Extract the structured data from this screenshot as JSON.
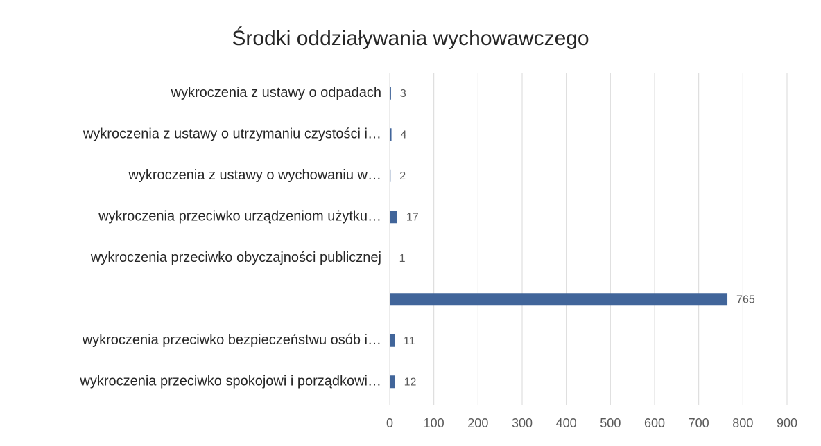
{
  "chart_data": {
    "type": "barh",
    "title": "Środki oddziaływania wychowawczego",
    "categories": [
      "wykroczenia z ustawy o odpadach",
      "wykroczenia z ustawy o utrzymaniu czystości i…",
      "wykroczenia z ustawy o wychowaniu w…",
      "wykroczenia przeciwko urządzeniom użytku…",
      "wykroczenia przeciwko obyczajności publicznej",
      null,
      "wykroczenia przeciwko bezpieczeństwu osób i…",
      "wykroczenia przeciwko spokojowi i porządkowi…"
    ],
    "values": [
      3,
      4,
      2,
      17,
      1,
      765,
      11,
      12
    ],
    "color": "#41659a",
    "xlim": [
      0,
      900
    ],
    "xticks": [
      0,
      100,
      200,
      300,
      400,
      500,
      600,
      700,
      800,
      900
    ],
    "grid": true
  }
}
